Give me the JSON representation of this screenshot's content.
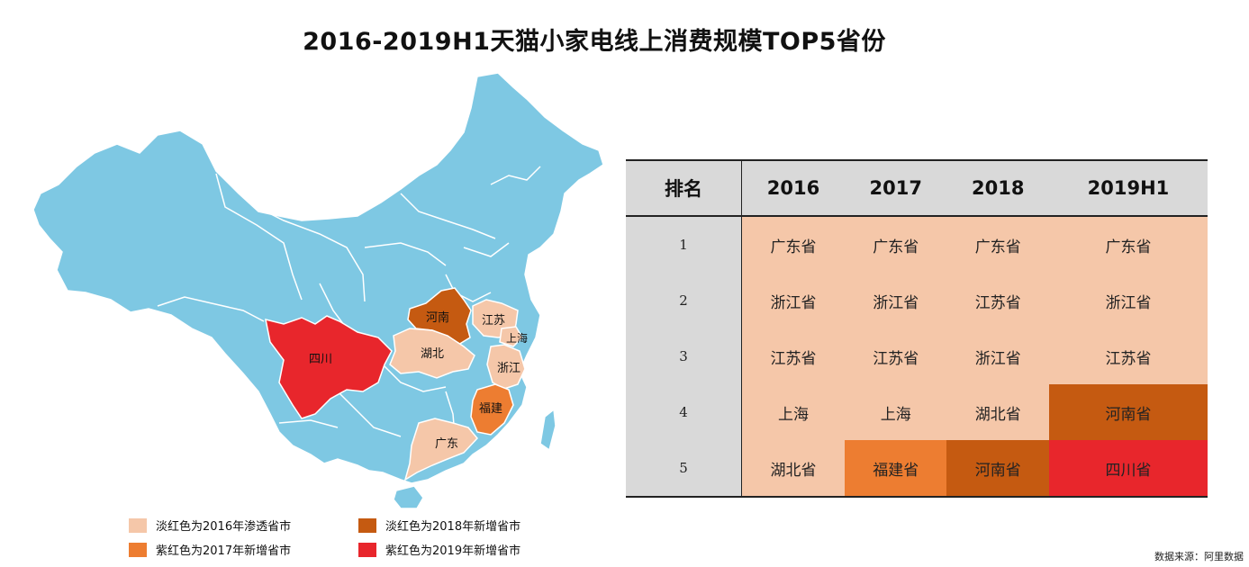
{
  "title": "2016-2019H1天猫小家电线上消费规模TOP5省份",
  "colors": {
    "base": "#7ec8e3",
    "c2016": "#f5c7a9",
    "c2017": "#ed7d31",
    "c2018": "#c55a11",
    "c2019": "#e8262c",
    "header": "#d9d9d9"
  },
  "map_labels": {
    "henan": "河南",
    "jiangsu": "江苏",
    "shanghai": "上海",
    "sichuan": "四川",
    "hubei": "湖北",
    "zhejiang": "浙江",
    "fujian": "福建",
    "guangdong": "广东"
  },
  "legend": [
    {
      "label": "淡红色为2016年渗透省市",
      "color": "#f5c7a9"
    },
    {
      "label": "淡红色为2018年新增省市",
      "color": "#c55a11"
    },
    {
      "label": "紫红色为2017年新增省市",
      "color": "#ed7d31"
    },
    {
      "label": "紫红色为2019年新增省市",
      "color": "#e8262c"
    }
  ],
  "chart_data": {
    "type": "table",
    "columns": [
      "排名",
      "2016",
      "2017",
      "2018",
      "2019H1"
    ],
    "rows": [
      {
        "rank": "1",
        "cells": [
          {
            "text": "广东省",
            "color": "#f5c7a9"
          },
          {
            "text": "广东省",
            "color": "#f5c7a9"
          },
          {
            "text": "广东省",
            "color": "#f5c7a9"
          },
          {
            "text": "广东省",
            "color": "#f5c7a9"
          }
        ]
      },
      {
        "rank": "2",
        "cells": [
          {
            "text": "浙江省",
            "color": "#f5c7a9"
          },
          {
            "text": "浙江省",
            "color": "#f5c7a9"
          },
          {
            "text": "江苏省",
            "color": "#f5c7a9"
          },
          {
            "text": "浙江省",
            "color": "#f5c7a9"
          }
        ]
      },
      {
        "rank": "3",
        "cells": [
          {
            "text": "江苏省",
            "color": "#f5c7a9"
          },
          {
            "text": "江苏省",
            "color": "#f5c7a9"
          },
          {
            "text": "浙江省",
            "color": "#f5c7a9"
          },
          {
            "text": "江苏省",
            "color": "#f5c7a9"
          }
        ]
      },
      {
        "rank": "4",
        "cells": [
          {
            "text": "上海",
            "color": "#f5c7a9"
          },
          {
            "text": "上海",
            "color": "#f5c7a9"
          },
          {
            "text": "湖北省",
            "color": "#f5c7a9"
          },
          {
            "text": "河南省",
            "color": "#c55a11"
          }
        ]
      },
      {
        "rank": "5",
        "cells": [
          {
            "text": "湖北省",
            "color": "#f5c7a9"
          },
          {
            "text": "福建省",
            "color": "#ed7d31"
          },
          {
            "text": "河南省",
            "color": "#c55a11"
          },
          {
            "text": "四川省",
            "color": "#e8262c"
          }
        ]
      }
    ]
  },
  "source_note": "数据来源：阿里数据"
}
